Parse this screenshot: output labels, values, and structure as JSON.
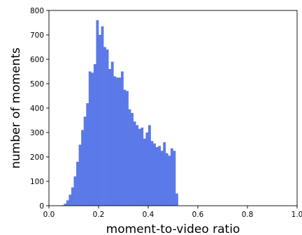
{
  "chart_data": {
    "type": "bar",
    "title": "",
    "xlabel": "moment-to-video ratio",
    "ylabel": "number of moments",
    "xlim": [
      0.0,
      1.0
    ],
    "ylim": [
      0,
      800
    ],
    "xticks": [
      "0.0",
      "0.2",
      "0.4",
      "0.6",
      "0.8",
      "1.0"
    ],
    "yticks": [
      "0",
      "100",
      "200",
      "300",
      "400",
      "500",
      "600",
      "700",
      "800"
    ],
    "bin_width": 0.01,
    "bins": [
      0.05,
      0.06,
      0.07,
      0.08,
      0.09,
      0.1,
      0.11,
      0.12,
      0.13,
      0.14,
      0.15,
      0.16,
      0.17,
      0.18,
      0.19,
      0.2,
      0.21,
      0.22,
      0.23,
      0.24,
      0.25,
      0.26,
      0.27,
      0.28,
      0.29,
      0.3,
      0.31,
      0.32,
      0.33,
      0.34,
      0.35,
      0.36,
      0.37,
      0.38,
      0.39,
      0.4,
      0.41,
      0.42,
      0.43,
      0.44,
      0.45,
      0.46,
      0.47,
      0.48,
      0.49,
      0.5,
      0.51
    ],
    "values": [
      2,
      8,
      22,
      45,
      75,
      120,
      180,
      250,
      310,
      365,
      420,
      550,
      545,
      580,
      760,
      700,
      735,
      650,
      640,
      560,
      590,
      530,
      525,
      525,
      550,
      475,
      470,
      395,
      380,
      345,
      330,
      315,
      320,
      275,
      300,
      330,
      265,
      255,
      240,
      245,
      225,
      260,
      215,
      205,
      235,
      225,
      50
    ],
    "color": "#5b79e8",
    "grid": false
  }
}
